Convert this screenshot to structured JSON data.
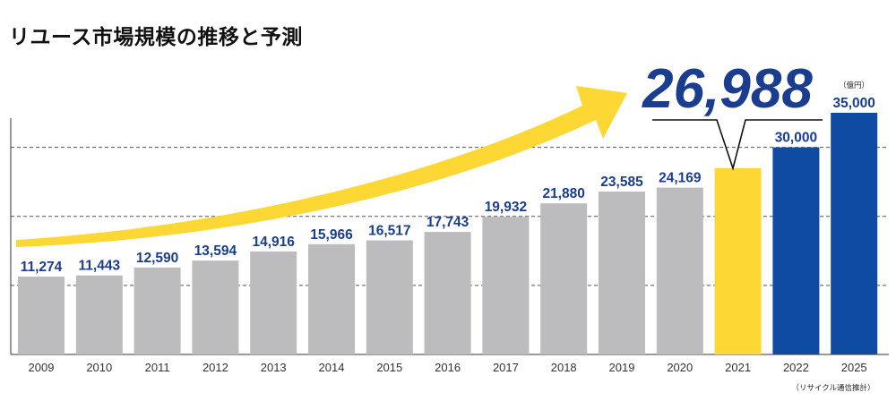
{
  "title": "リユース市場規模の推移と予測",
  "chart_data": {
    "type": "bar",
    "title": "リユース市場規模の推移と予測",
    "categories": [
      "2009",
      "2010",
      "2011",
      "2012",
      "2013",
      "2014",
      "2015",
      "2016",
      "2017",
      "2018",
      "2019",
      "2020",
      "2021",
      "2022",
      "2025"
    ],
    "values": [
      11274,
      11443,
      12590,
      13594,
      14916,
      15966,
      16517,
      17743,
      19932,
      21880,
      23585,
      24169,
      26988,
      30000,
      35000
    ],
    "value_labels": [
      "11,274",
      "11,443",
      "12,590",
      "13,594",
      "14,916",
      "15,966",
      "16,517",
      "17,743",
      "19,932",
      "21,880",
      "23,585",
      "24,169",
      "26,988",
      "30,000",
      "35,000"
    ],
    "bar_kind": [
      "actual",
      "actual",
      "actual",
      "actual",
      "actual",
      "actual",
      "actual",
      "actual",
      "actual",
      "actual",
      "actual",
      "actual",
      "highlight",
      "forecast",
      "forecast"
    ],
    "unit": "（億円）",
    "highlight_callout": "26,988",
    "source_note": "（リサイクル通信推計）",
    "ylim": [
      0,
      37000
    ],
    "gridlines": [
      10000,
      20000,
      30000
    ],
    "colors": {
      "actual": "#bcbcbe",
      "highlight": "#fdd835",
      "forecast": "#0f4aa3",
      "value_text": "#1a3d8f",
      "arrow": "#fdd835",
      "grid": "#555555"
    }
  }
}
